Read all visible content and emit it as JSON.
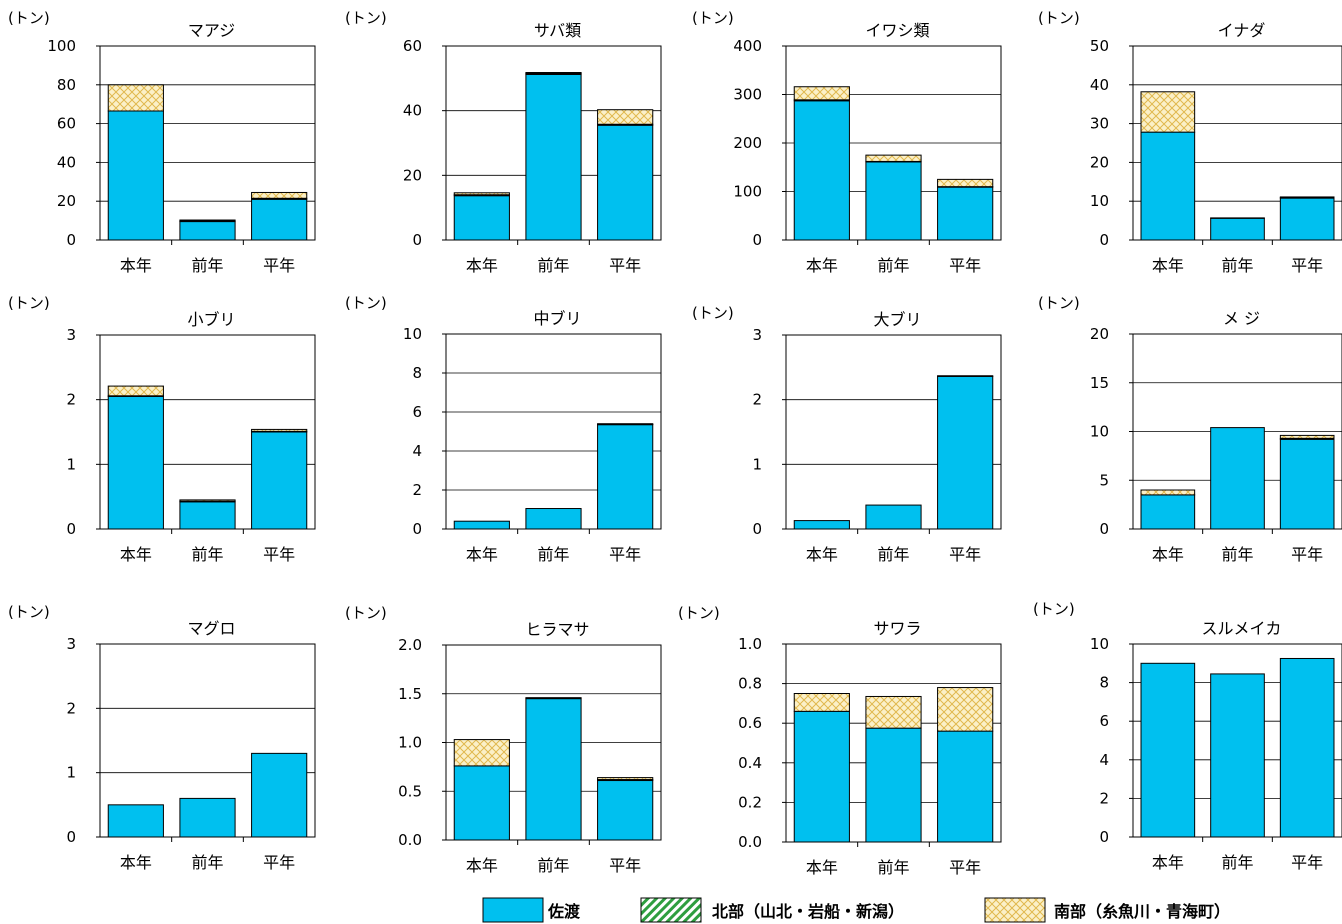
{
  "unit_label": "(トン)",
  "categories": [
    "本年",
    "前年",
    "平年"
  ],
  "legend": [
    {
      "name": "佐渡",
      "color": "#00c0ef",
      "pattern": "solid"
    },
    {
      "name": "北部（山北・岩船・新潟）",
      "color": "#2e9e3f",
      "pattern": "diagonal-stripes"
    },
    {
      "name": "南部（糸魚川・青海町）",
      "color": "#e8c870",
      "pattern": "crosshatch"
    }
  ],
  "chart_data": [
    {
      "type": "bar",
      "stacked": true,
      "title": "マアジ",
      "ylim": [
        0,
        100
      ],
      "yticks": [
        "0",
        "20",
        "40",
        "60",
        "80",
        "100"
      ],
      "series": [
        {
          "name": "佐渡",
          "values": [
            66.5,
            9.5,
            21
          ]
        },
        {
          "name": "北部（山北・岩船・新潟）",
          "values": [
            0,
            0.3,
            0.5
          ]
        },
        {
          "name": "南部（糸魚川・青海町）",
          "values": [
            13.5,
            0.5,
            3
          ]
        }
      ]
    },
    {
      "type": "bar",
      "stacked": true,
      "title": "サバ類",
      "ylim": [
        0,
        60
      ],
      "yticks": [
        "0",
        "20",
        "40",
        "60"
      ],
      "series": [
        {
          "name": "佐渡",
          "values": [
            13.7,
            51.2,
            35.5
          ]
        },
        {
          "name": "北部（山北・岩船・新潟）",
          "values": [
            0.3,
            0.3,
            0.3
          ]
        },
        {
          "name": "南部（糸魚川・青海町）",
          "values": [
            0.6,
            0.3,
            4.5
          ]
        }
      ]
    },
    {
      "type": "bar",
      "stacked": true,
      "title": "イワシ類",
      "ylim": [
        0,
        400
      ],
      "yticks": [
        "0",
        "100",
        "200",
        "300",
        "400"
      ],
      "series": [
        {
          "name": "佐渡",
          "values": [
            287,
            161,
            109
          ]
        },
        {
          "name": "北部（山北・岩船・新潟）",
          "values": [
            2,
            1,
            1
          ]
        },
        {
          "name": "南部（糸魚川・青海町）",
          "values": [
            27,
            13,
            15
          ]
        }
      ]
    },
    {
      "type": "bar",
      "stacked": true,
      "title": "イナダ",
      "ylim": [
        0,
        50
      ],
      "yticks": [
        "0",
        "10",
        "20",
        "30",
        "40",
        "50"
      ],
      "series": [
        {
          "name": "佐渡",
          "values": [
            27.8,
            5.6,
            10.8
          ]
        },
        {
          "name": "北部（山北・岩船・新潟）",
          "values": [
            0,
            0,
            0.1
          ]
        },
        {
          "name": "南部（糸魚川・青海町）",
          "values": [
            10.4,
            0.1,
            0.2
          ]
        }
      ]
    },
    {
      "type": "bar",
      "stacked": true,
      "title": "小ブリ",
      "ylim": [
        0,
        3
      ],
      "yticks": [
        "0",
        "1",
        "2",
        "3"
      ],
      "series": [
        {
          "name": "佐渡",
          "values": [
            2.05,
            0.42,
            1.5
          ]
        },
        {
          "name": "北部（山北・岩船・新潟）",
          "values": [
            0.01,
            0.01,
            0.01
          ]
        },
        {
          "name": "南部（糸魚川・青海町）",
          "values": [
            0.15,
            0.02,
            0.03
          ]
        }
      ]
    },
    {
      "type": "bar",
      "stacked": true,
      "title": "中ブリ",
      "ylim": [
        0,
        10
      ],
      "yticks": [
        "0",
        "2",
        "4",
        "6",
        "8",
        "10"
      ],
      "series": [
        {
          "name": "佐渡",
          "values": [
            0.4,
            1.05,
            5.35
          ]
        },
        {
          "name": "北部（山北・岩船・新潟）",
          "values": [
            0,
            0,
            0.02
          ]
        },
        {
          "name": "南部（糸魚川・青海町）",
          "values": [
            0,
            0,
            0.03
          ]
        }
      ]
    },
    {
      "type": "bar",
      "stacked": true,
      "title": "大ブリ",
      "ylim": [
        0,
        3
      ],
      "yticks": [
        "0",
        "1",
        "2",
        "3"
      ],
      "series": [
        {
          "name": "佐渡",
          "values": [
            0.13,
            0.37,
            2.36
          ]
        },
        {
          "name": "北部（山北・岩船・新潟）",
          "values": [
            0,
            0,
            0
          ]
        },
        {
          "name": "南部（糸魚川・青海町）",
          "values": [
            0,
            0,
            0.01
          ]
        }
      ]
    },
    {
      "type": "bar",
      "stacked": true,
      "title": "メ ジ",
      "ylim": [
        0,
        20
      ],
      "yticks": [
        "0",
        "5",
        "10",
        "15",
        "20"
      ],
      "series": [
        {
          "name": "佐渡",
          "values": [
            3.5,
            10.4,
            9.2
          ]
        },
        {
          "name": "北部（山北・岩船・新潟）",
          "values": [
            0,
            0,
            0.1
          ]
        },
        {
          "name": "南部（糸魚川・青海町）",
          "values": [
            0.5,
            0,
            0.3
          ]
        }
      ]
    },
    {
      "type": "bar",
      "stacked": true,
      "title": "マグロ",
      "ylim": [
        0,
        3
      ],
      "yticks": [
        "0",
        "1",
        "2",
        "3"
      ],
      "series": [
        {
          "name": "佐渡",
          "values": [
            0.5,
            0.6,
            1.3
          ]
        },
        {
          "name": "北部（山北・岩船・新潟）",
          "values": [
            0,
            0,
            0
          ]
        },
        {
          "name": "南部（糸魚川・青海町）",
          "values": [
            0,
            0,
            0
          ]
        }
      ]
    },
    {
      "type": "bar",
      "stacked": true,
      "title": "ヒラマサ",
      "ylim": [
        0,
        2.0
      ],
      "yticks": [
        "0.0",
        "0.5",
        "1.0",
        "1.5",
        "2.0"
      ],
      "series": [
        {
          "name": "佐渡",
          "values": [
            0.76,
            1.45,
            0.61
          ]
        },
        {
          "name": "北部（山北・岩船・新潟）",
          "values": [
            0,
            0,
            0.01
          ]
        },
        {
          "name": "南部（糸魚川・青海町）",
          "values": [
            0.27,
            0.01,
            0.02
          ]
        }
      ]
    },
    {
      "type": "bar",
      "stacked": true,
      "title": "サワラ",
      "ylim": [
        0,
        1.0
      ],
      "yticks": [
        "0.0",
        "0.2",
        "0.4",
        "0.6",
        "0.8",
        "1.0"
      ],
      "series": [
        {
          "name": "佐渡",
          "values": [
            0.66,
            0.575,
            0.56
          ]
        },
        {
          "name": "北部（山北・岩船・新潟）",
          "values": [
            0,
            0,
            0
          ]
        },
        {
          "name": "南部（糸魚川・青海町）",
          "values": [
            0.09,
            0.16,
            0.22
          ]
        }
      ]
    },
    {
      "type": "bar",
      "stacked": true,
      "title": "スルメイカ",
      "ylim": [
        0,
        10
      ],
      "yticks": [
        "0",
        "2",
        "4",
        "6",
        "8",
        "10"
      ],
      "series": [
        {
          "name": "佐渡",
          "values": [
            9.0,
            8.45,
            9.25
          ]
        },
        {
          "name": "北部（山北・岩船・新潟）",
          "values": [
            0,
            0,
            0
          ]
        },
        {
          "name": "南部（糸魚川・青海町）",
          "values": [
            0,
            0,
            0
          ]
        }
      ]
    }
  ]
}
